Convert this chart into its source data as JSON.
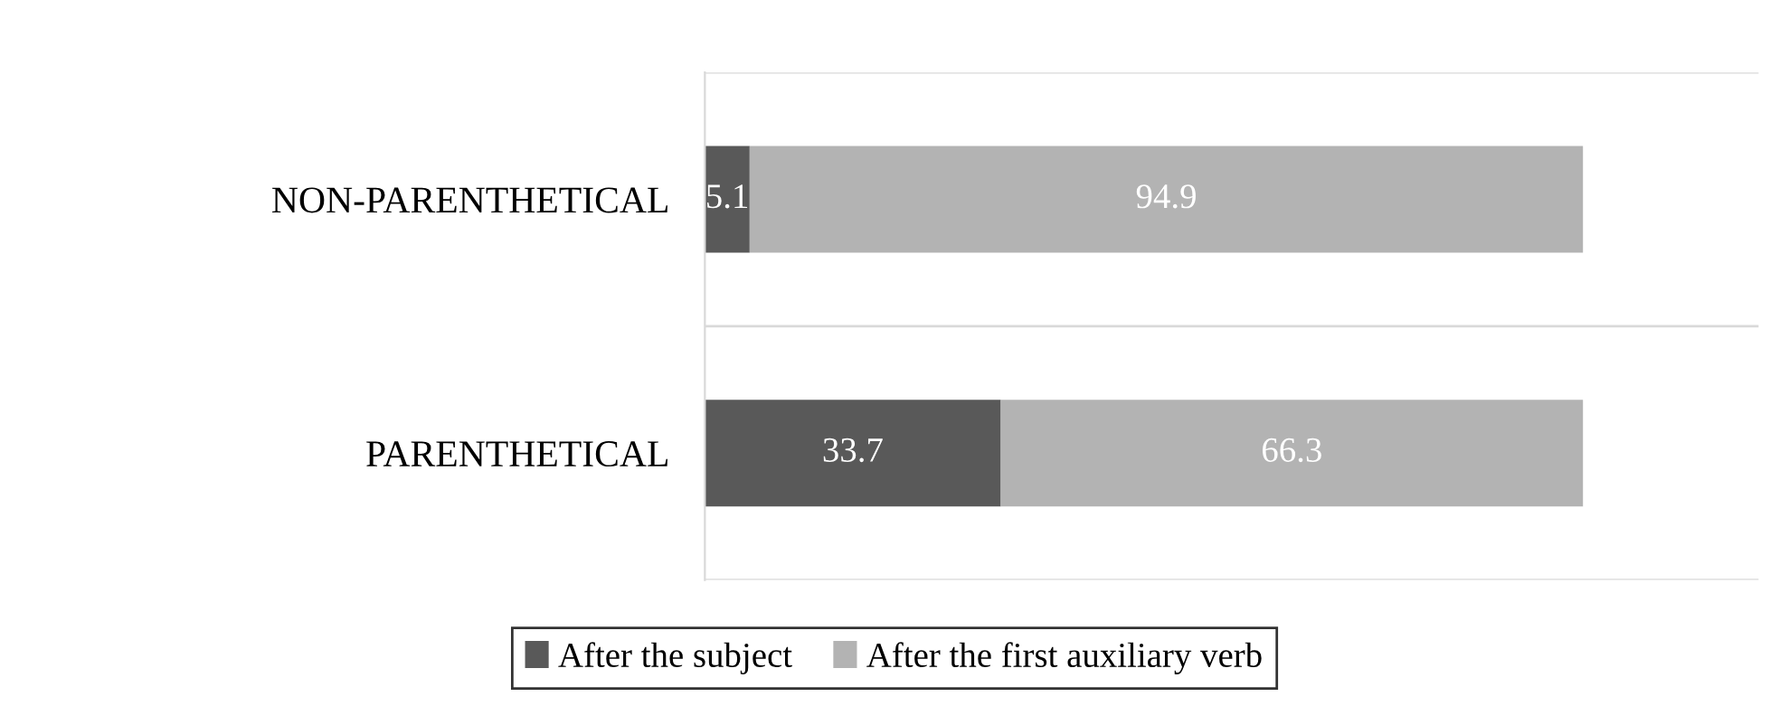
{
  "chart_data": {
    "type": "bar",
    "orientation": "horizontal",
    "stacked": true,
    "categories": [
      "NON-PARENTHETICAL",
      "PARENTHETICAL"
    ],
    "series": [
      {
        "name": "After the subject",
        "color": "#595959",
        "values": [
          5.1,
          33.7
        ]
      },
      {
        "name": "After the first auxiliary verb",
        "color": "#b3b3b3",
        "values": [
          94.9,
          66.3
        ]
      }
    ],
    "xlim": [
      0,
      120
    ],
    "data_labels": true,
    "grid": "y",
    "legend": "bottom",
    "tick_labels": "y"
  }
}
